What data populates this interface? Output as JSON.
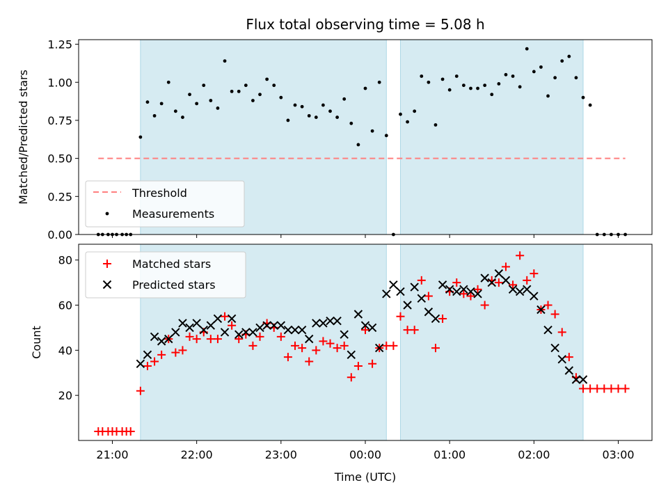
{
  "chart_data": [
    {
      "type": "scatter",
      "title": "Flux total observing time = 5.08 h",
      "xlabel": "",
      "ylabel": "Matched/Predicted stars",
      "xlim": [
        "20:36",
        "03:24"
      ],
      "ylim": [
        0,
        1.28
      ],
      "yticks": [
        0.0,
        0.25,
        0.5,
        0.75,
        1.0,
        1.25
      ],
      "ytick_labels": [
        "0.00",
        "0.25",
        "0.50",
        "0.75",
        "1.00",
        "1.25"
      ],
      "legend": {
        "placement": "bottom-left",
        "entries": [
          "Threshold",
          "Measurements"
        ]
      },
      "observing_windows": [
        [
          "21:20",
          "00:15"
        ],
        [
          "00:25",
          "02:35"
        ]
      ],
      "threshold": {
        "name": "Threshold",
        "value": 0.5,
        "x_range": [
          "20:50",
          "03:05"
        ],
        "color": "#ff7f7f"
      },
      "series": [
        {
          "name": "Measurements",
          "color": "#000000",
          "x": [
            "20:50",
            "20:53",
            "20:57",
            "21:00",
            "21:03",
            "21:07",
            "21:10",
            "21:13",
            "21:20",
            "21:25",
            "21:30",
            "21:35",
            "21:40",
            "21:45",
            "21:50",
            "21:55",
            "22:00",
            "22:05",
            "22:10",
            "22:15",
            "22:20",
            "22:25",
            "22:30",
            "22:35",
            "22:40",
            "22:45",
            "22:50",
            "22:55",
            "23:00",
            "23:05",
            "23:10",
            "23:15",
            "23:20",
            "23:25",
            "23:30",
            "23:35",
            "23:40",
            "23:45",
            "23:50",
            "23:55",
            "00:00",
            "00:05",
            "00:10",
            "00:15",
            "00:20",
            "00:25",
            "00:30",
            "00:35",
            "00:40",
            "00:45",
            "00:50",
            "00:55",
            "01:00",
            "01:05",
            "01:10",
            "01:15",
            "01:20",
            "01:25",
            "01:30",
            "01:35",
            "01:40",
            "01:45",
            "01:50",
            "01:55",
            "02:00",
            "02:05",
            "02:10",
            "02:15",
            "02:20",
            "02:25",
            "02:30",
            "02:35",
            "02:40",
            "02:45",
            "02:50",
            "02:55",
            "03:00",
            "03:05"
          ],
          "y": [
            0,
            0,
            0,
            0,
            0,
            0,
            0,
            0,
            0.64,
            0.87,
            0.78,
            0.86,
            1.0,
            0.81,
            0.77,
            0.92,
            0.86,
            0.98,
            0.88,
            0.83,
            1.14,
            0.94,
            0.94,
            0.98,
            0.88,
            0.92,
            1.02,
            0.98,
            0.9,
            0.75,
            0.85,
            0.84,
            0.78,
            0.77,
            0.85,
            0.81,
            0.77,
            0.89,
            0.73,
            0.59,
            0.96,
            0.68,
            1.0,
            0.65,
            0,
            0.79,
            0.74,
            0.81,
            1.04,
            1.0,
            0.72,
            1.02,
            0.95,
            1.04,
            0.98,
            0.96,
            0.96,
            0.98,
            0.92,
            0.99,
            1.05,
            1.04,
            0.97,
            1.22,
            1.07,
            1.1,
            0.91,
            1.03,
            1.14,
            1.17,
            1.03,
            0.9,
            0.85,
            0,
            0,
            0,
            0,
            0
          ]
        }
      ]
    },
    {
      "type": "scatter",
      "title": "",
      "xlabel": "Time (UTC)",
      "ylabel": "Count",
      "xlim": [
        "20:36",
        "03:24"
      ],
      "ylim": [
        0,
        87
      ],
      "yticks": [
        20,
        40,
        60,
        80
      ],
      "xtick_labels": [
        "21:00",
        "22:00",
        "23:00",
        "00:00",
        "01:00",
        "02:00",
        "03:00"
      ],
      "legend": {
        "placement": "top-left",
        "entries": [
          "Matched stars",
          "Predicted stars"
        ]
      },
      "observing_windows": [
        [
          "21:20",
          "00:15"
        ],
        [
          "00:25",
          "02:35"
        ]
      ],
      "series": [
        {
          "name": "Matched stars",
          "marker": "plus",
          "color": "#ff0000",
          "x": [
            "20:50",
            "20:53",
            "20:57",
            "21:00",
            "21:03",
            "21:07",
            "21:10",
            "21:13",
            "21:20",
            "21:25",
            "21:30",
            "21:35",
            "21:40",
            "21:45",
            "21:50",
            "21:55",
            "22:00",
            "22:05",
            "22:10",
            "22:15",
            "22:20",
            "22:25",
            "22:30",
            "22:35",
            "22:40",
            "22:45",
            "22:50",
            "22:55",
            "23:00",
            "23:05",
            "23:10",
            "23:15",
            "23:20",
            "23:25",
            "23:30",
            "23:35",
            "23:40",
            "23:45",
            "23:50",
            "23:55",
            "00:00",
            "00:05",
            "00:10",
            "00:15",
            "00:20",
            "00:25",
            "00:30",
            "00:35",
            "00:40",
            "00:45",
            "00:50",
            "00:55",
            "01:00",
            "01:05",
            "01:10",
            "01:15",
            "01:20",
            "01:25",
            "01:30",
            "01:35",
            "01:40",
            "01:45",
            "01:50",
            "01:55",
            "02:00",
            "02:05",
            "02:10",
            "02:15",
            "02:20",
            "02:25",
            "02:30",
            "02:35",
            "02:40",
            "02:45",
            "02:50",
            "02:55",
            "03:00",
            "03:05"
          ],
          "y": [
            4,
            4,
            4,
            4,
            4,
            4,
            4,
            4,
            22,
            33,
            35,
            38,
            45,
            39,
            40,
            46,
            45,
            48,
            45,
            45,
            55,
            51,
            45,
            47,
            42,
            46,
            52,
            50,
            46,
            37,
            42,
            41,
            35,
            40,
            44,
            43,
            41,
            42,
            28,
            33,
            49,
            34,
            41,
            42,
            42,
            55,
            49,
            49,
            71,
            64,
            41,
            54,
            66,
            70,
            65,
            64,
            67,
            60,
            71,
            70,
            77,
            69,
            82,
            71,
            74,
            58,
            60,
            56,
            48,
            37,
            28,
            23,
            23,
            23,
            23,
            23,
            23,
            23
          ]
        },
        {
          "name": "Predicted stars",
          "marker": "x",
          "color": "#000000",
          "x": [
            "21:20",
            "21:25",
            "21:30",
            "21:35",
            "21:40",
            "21:45",
            "21:50",
            "21:55",
            "22:00",
            "22:05",
            "22:10",
            "22:15",
            "22:20",
            "22:25",
            "22:30",
            "22:35",
            "22:40",
            "22:45",
            "22:50",
            "22:55",
            "23:00",
            "23:05",
            "23:10",
            "23:15",
            "23:20",
            "23:25",
            "23:30",
            "23:35",
            "23:40",
            "23:45",
            "23:50",
            "23:55",
            "00:00",
            "00:05",
            "00:10",
            "00:15",
            "00:20",
            "00:25",
            "00:30",
            "00:35",
            "00:40",
            "00:45",
            "00:50",
            "00:55",
            "01:00",
            "01:05",
            "01:10",
            "01:15",
            "01:20",
            "01:25",
            "01:30",
            "01:35",
            "01:40",
            "01:45",
            "01:50",
            "01:55",
            "02:00",
            "02:05",
            "02:10",
            "02:15",
            "02:20",
            "02:25",
            "02:30",
            "02:35"
          ],
          "y": [
            34,
            38,
            46,
            44,
            45,
            48,
            52,
            50,
            52,
            49,
            51,
            54,
            48,
            54,
            47,
            48,
            48,
            50,
            51,
            51,
            51,
            49,
            49,
            49,
            45,
            52,
            52,
            53,
            53,
            47,
            38,
            56,
            51,
            50,
            41,
            65,
            69,
            66,
            60,
            68,
            63,
            57,
            54,
            69,
            67,
            66,
            67,
            66,
            65,
            72,
            70,
            74,
            71,
            67,
            66,
            67,
            64,
            58,
            49,
            41,
            36,
            31,
            27,
            27
          ]
        }
      ]
    }
  ]
}
